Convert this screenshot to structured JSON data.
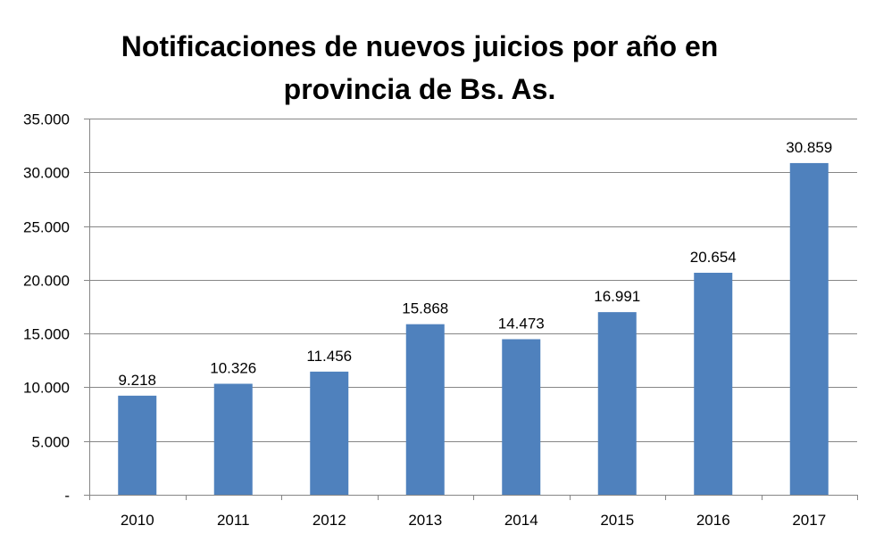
{
  "chart_data": {
    "type": "bar",
    "title_lines": [
      "Notificaciones de nuevos juicios por año en",
      "provincia de Bs. As."
    ],
    "categories": [
      "2010",
      "2011",
      "2012",
      "2013",
      "2014",
      "2015",
      "2016",
      "2017"
    ],
    "values": [
      9218,
      10326,
      11456,
      15868,
      14473,
      16991,
      20654,
      30859
    ],
    "data_labels": [
      "9.218",
      "10.326",
      "11.456",
      "15.868",
      "14.473",
      "16.991",
      "20.654",
      "30.859"
    ],
    "y_ticks": [
      0,
      5000,
      10000,
      15000,
      20000,
      25000,
      30000,
      35000
    ],
    "y_tick_labels": [
      "-",
      "5.000",
      "10.000",
      "15.000",
      "20.000",
      "25.000",
      "30.000",
      "35.000"
    ],
    "ylim": [
      0,
      35000
    ],
    "grid": true,
    "legend": "none",
    "colors": {
      "bar": "#4F81BD",
      "grid": "#868686",
      "axis": "#868686"
    }
  }
}
